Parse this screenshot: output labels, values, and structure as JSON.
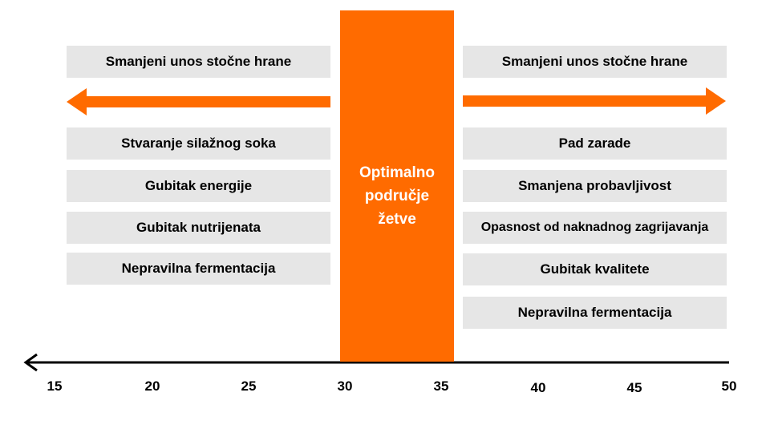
{
  "colors": {
    "accent": "#ff6b00",
    "box_fill": "#e6e6e6",
    "text": "#000000",
    "axis": "#000000"
  },
  "optimal_zone": {
    "label": "Optimalno\npodručje\nžetve",
    "range": [
      30,
      35
    ]
  },
  "left_side": {
    "header": "Smanjeni unos stočne hrane",
    "arrow_direction": "left",
    "items": [
      "Stvaranje silažnog soka",
      "Gubitak energije",
      "Gubitak nutrijenata",
      "Nepravilna fermentacija"
    ]
  },
  "right_side": {
    "header": "Smanjeni unos stočne hrane",
    "arrow_direction": "right",
    "items": [
      "Pad zarade",
      "Smanjena probavljivost",
      "Opasnost od naknadnog zagrijavanja",
      "Gubitak kvalitete",
      "Nepravilna fermentacija"
    ]
  },
  "axis": {
    "ticks": [
      "15",
      "20",
      "25",
      "30",
      "35",
      "40",
      "45",
      "50"
    ],
    "arrow_direction": "left"
  }
}
